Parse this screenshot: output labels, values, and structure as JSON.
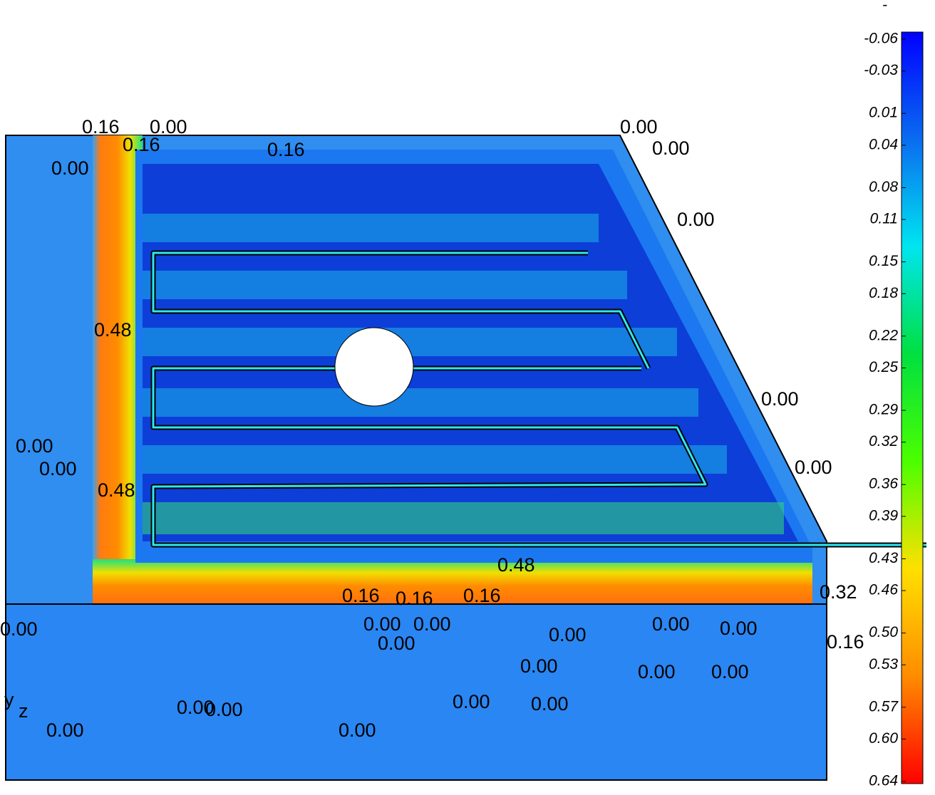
{
  "chart_data": {
    "type": "contour",
    "colorbar_header": "-",
    "clim": [
      -0.06,
      0.64
    ],
    "colormap": [
      "#0000ff",
      "#0a6cf0",
      "#00e5f0",
      "#00e040",
      "#4cff00",
      "#ffe000",
      "#ff8c00",
      "#ff0000"
    ],
    "cticks": [
      -0.06,
      -0.03,
      0.01,
      0.04,
      0.08,
      0.11,
      0.15,
      0.18,
      0.22,
      0.25,
      0.29,
      0.32,
      0.36,
      0.39,
      0.43,
      0.46,
      {
        "value": 0.5,
        "label": "0.50"
      },
      0.53,
      0.57,
      {
        "value": 0.6,
        "label": "0.60"
      },
      0.64
    ],
    "axis_labels": {
      "y": "y",
      "z": "z"
    },
    "annotations": [
      "0.16",
      "0.00",
      "0.00",
      "0.16",
      "0.00",
      "0.00",
      "0.00",
      "0.48",
      "0.00",
      "0.00",
      "0.00",
      "0.00",
      "0.48",
      "0.16",
      "0.16",
      "0.16",
      "0.00",
      "0.00",
      "0.00",
      "0.00",
      "0.00",
      "0.00",
      "0.00",
      "0.00",
      "0.00",
      "0.00",
      "0.00",
      "0.00",
      "0.00",
      "0.00",
      "0.00",
      "0.00",
      "0.48",
      "0.32",
      "0.16",
      "0.16"
    ]
  }
}
